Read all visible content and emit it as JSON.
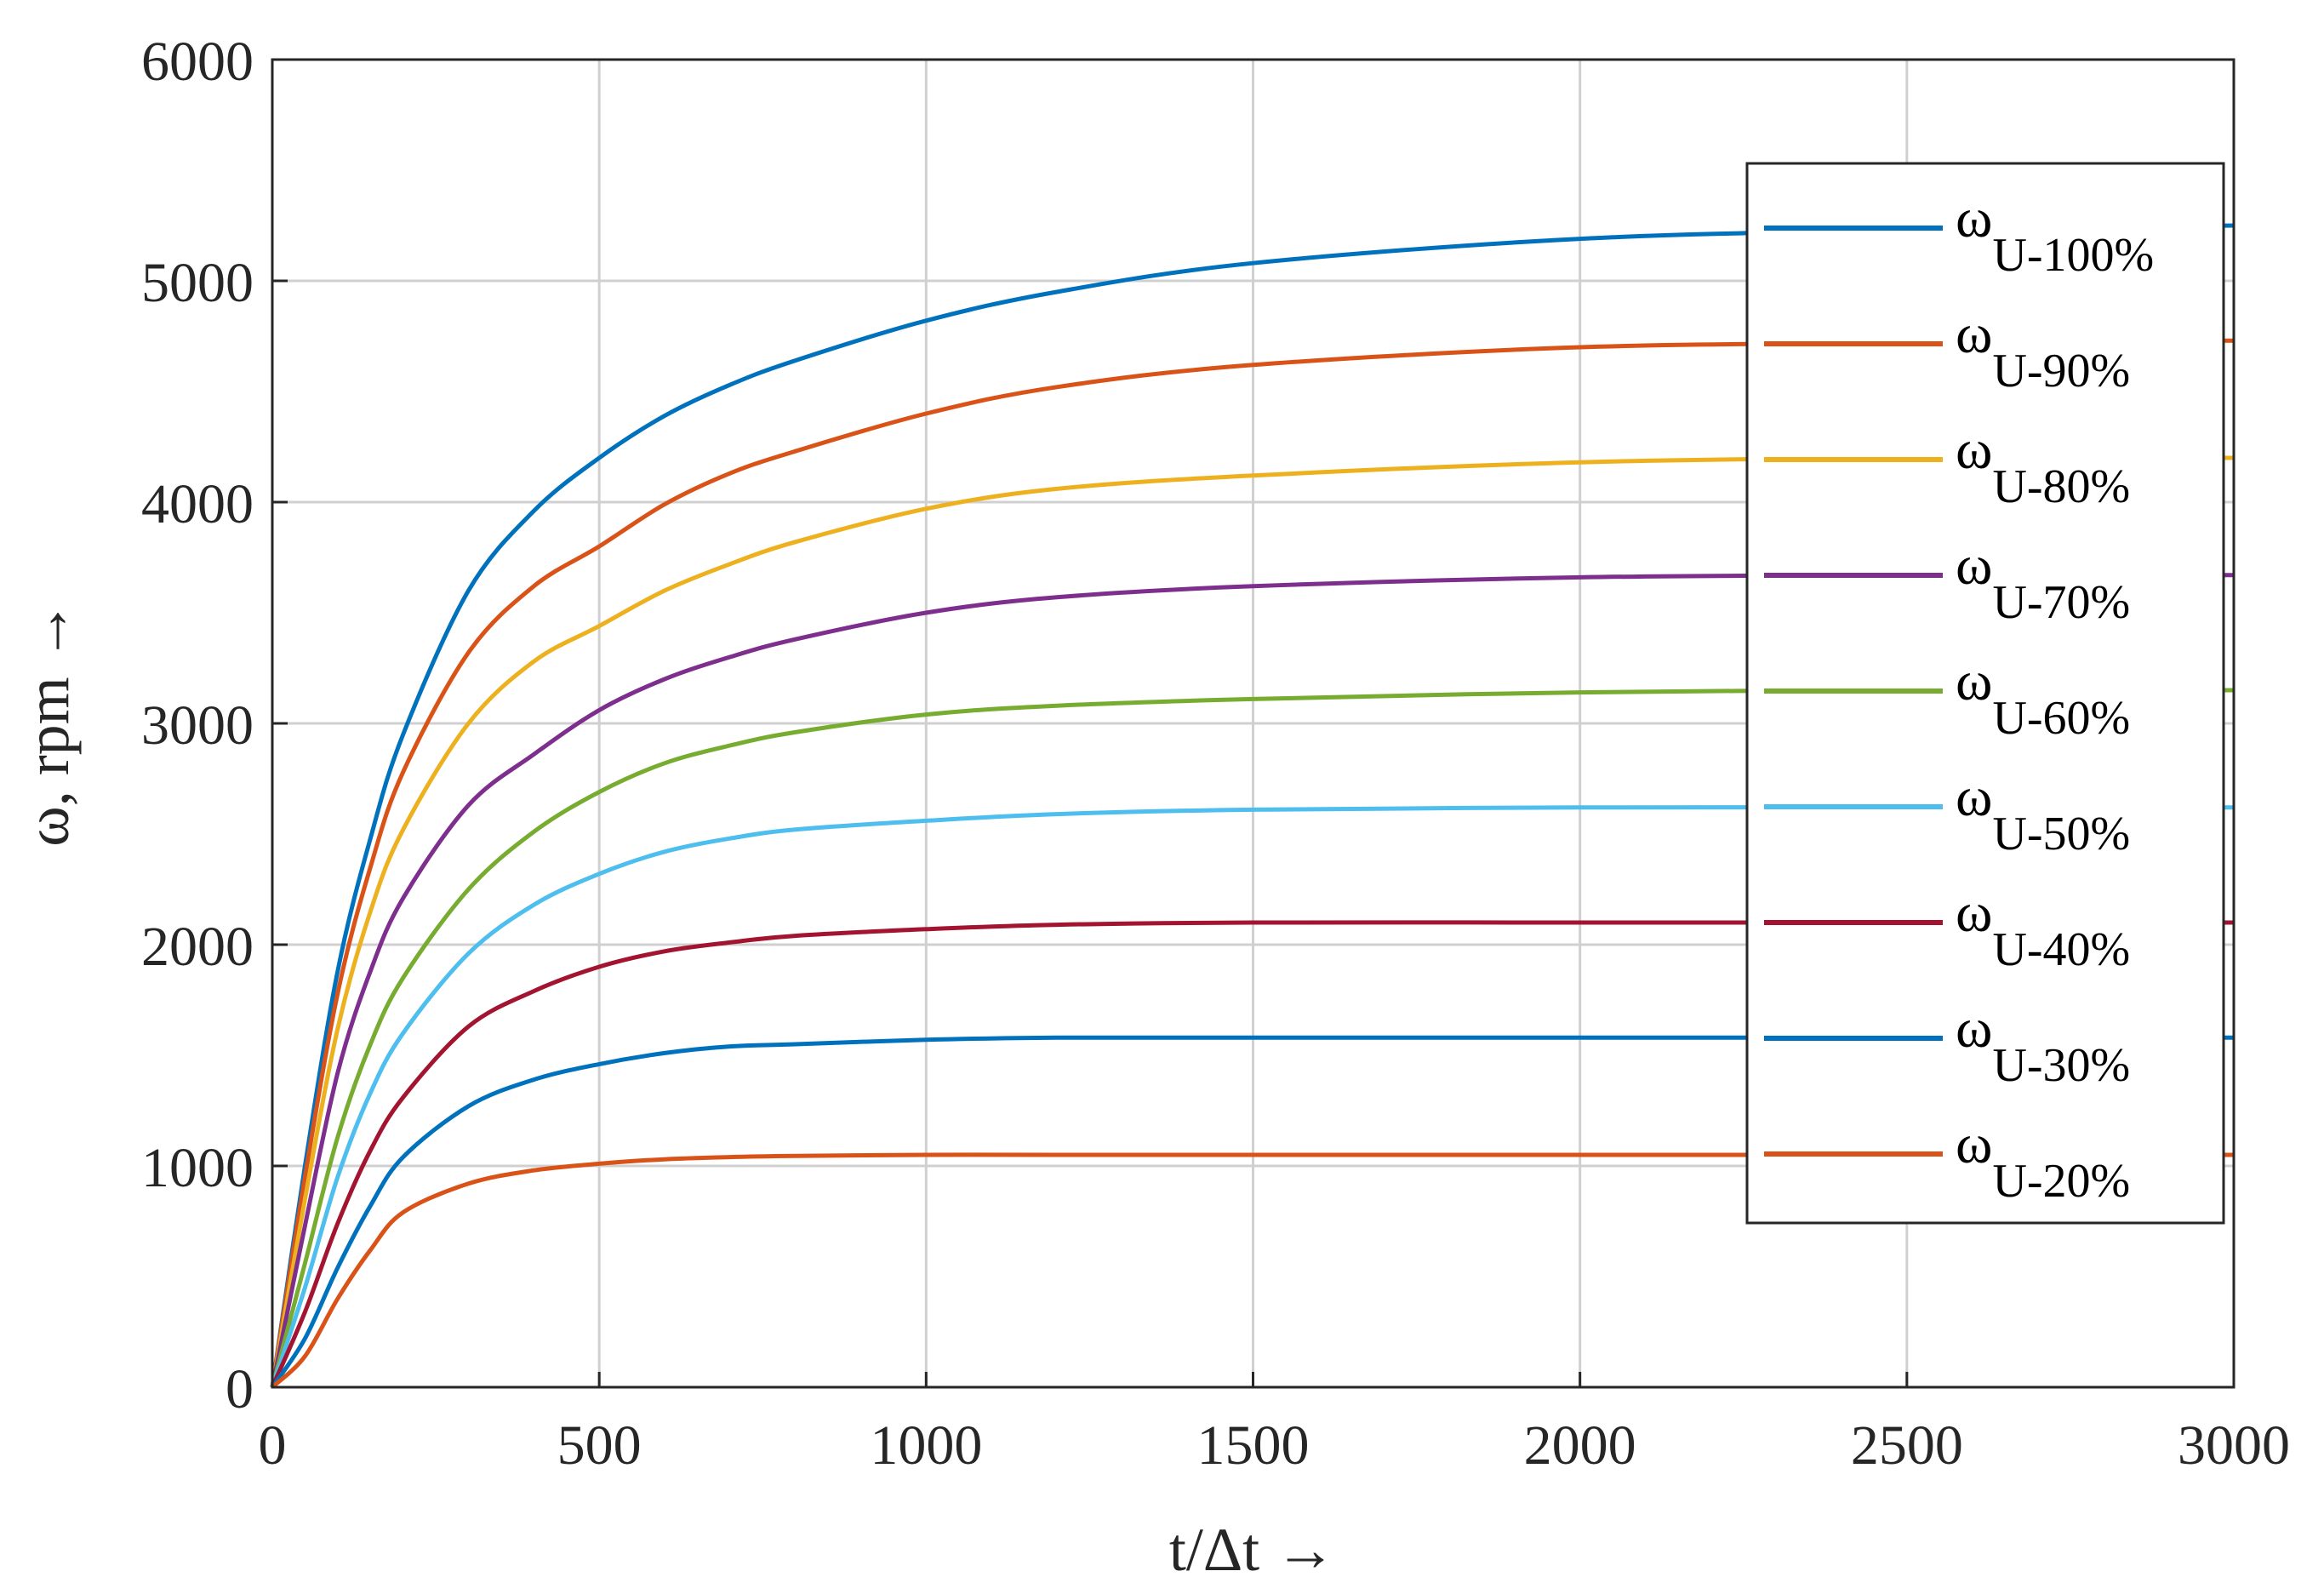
{
  "chart_data": {
    "type": "line",
    "xlabel": "t/Δt →",
    "ylabel": "ω, rpm →",
    "xlim": [
      0,
      3000
    ],
    "ylim": [
      0,
      6000
    ],
    "xticks": [
      "0",
      "500",
      "1000",
      "1500",
      "2000",
      "2500",
      "3000"
    ],
    "yticks": [
      "0",
      "1000",
      "2000",
      "3000",
      "4000",
      "5000",
      "6000"
    ],
    "xtick_values": [
      0,
      500,
      1000,
      1500,
      2000,
      2500,
      3000
    ],
    "ytick_values": [
      0,
      1000,
      2000,
      3000,
      4000,
      5000,
      6000
    ],
    "grid": true,
    "legend_position": "top-right",
    "x": [
      0,
      50,
      100,
      150,
      200,
      300,
      400,
      500,
      600,
      700,
      800,
      1000,
      1200,
      1500,
      2000,
      2500,
      3000
    ],
    "series": [
      {
        "symbol": "ω",
        "subscript": "U-100%",
        "color": "#0072BD",
        "values": [
          0,
          1000,
          1880,
          2480,
          2950,
          3600,
          3960,
          4200,
          4390,
          4530,
          4640,
          4820,
          4950,
          5080,
          5190,
          5230,
          5250
        ]
      },
      {
        "symbol": "ω",
        "subscript": "U-90%",
        "color": "#D95319",
        "values": [
          0,
          950,
          1780,
          2350,
          2780,
          3320,
          3620,
          3800,
          3990,
          4130,
          4230,
          4400,
          4520,
          4620,
          4700,
          4720,
          4730
        ]
      },
      {
        "symbol": "ω",
        "subscript": "U-80%",
        "color": "#EDB120",
        "values": [
          0,
          850,
          1620,
          2150,
          2520,
          3000,
          3280,
          3440,
          3600,
          3720,
          3820,
          3970,
          4060,
          4120,
          4180,
          4200,
          4200
        ]
      },
      {
        "symbol": "ω",
        "subscript": "U-70%",
        "color": "#7E2F8E",
        "values": [
          0,
          730,
          1420,
          1880,
          2210,
          2630,
          2860,
          3060,
          3200,
          3300,
          3380,
          3500,
          3570,
          3620,
          3660,
          3670,
          3670
        ]
      },
      {
        "symbol": "ω",
        "subscript": "U-60%",
        "color": "#77AC30",
        "values": [
          0,
          560,
          1130,
          1550,
          1850,
          2250,
          2510,
          2690,
          2820,
          2900,
          2960,
          3040,
          3080,
          3110,
          3140,
          3150,
          3150
        ]
      },
      {
        "symbol": "ω",
        "subscript": "U-50%",
        "color": "#4DBEEE",
        "values": [
          0,
          450,
          950,
          1330,
          1600,
          1960,
          2180,
          2320,
          2420,
          2480,
          2520,
          2560,
          2590,
          2610,
          2620,
          2620,
          2620
        ]
      },
      {
        "symbol": "ω",
        "subscript": "U-40%",
        "color": "#A2142F",
        "values": [
          0,
          340,
          740,
          1070,
          1310,
          1630,
          1790,
          1900,
          1970,
          2010,
          2040,
          2070,
          2090,
          2100,
          2100,
          2100,
          2100
        ]
      },
      {
        "symbol": "ω",
        "subscript": "U-30%",
        "color": "#0072BD",
        "values": [
          0,
          220,
          540,
          820,
          1040,
          1270,
          1390,
          1460,
          1510,
          1540,
          1550,
          1570,
          1580,
          1580,
          1580,
          1580,
          1580
        ]
      },
      {
        "symbol": "ω",
        "subscript": "U-20%",
        "color": "#D95319",
        "values": [
          0,
          140,
          400,
          620,
          790,
          920,
          980,
          1010,
          1030,
          1040,
          1045,
          1050,
          1050,
          1050,
          1050,
          1050,
          1050
        ]
      }
    ]
  }
}
